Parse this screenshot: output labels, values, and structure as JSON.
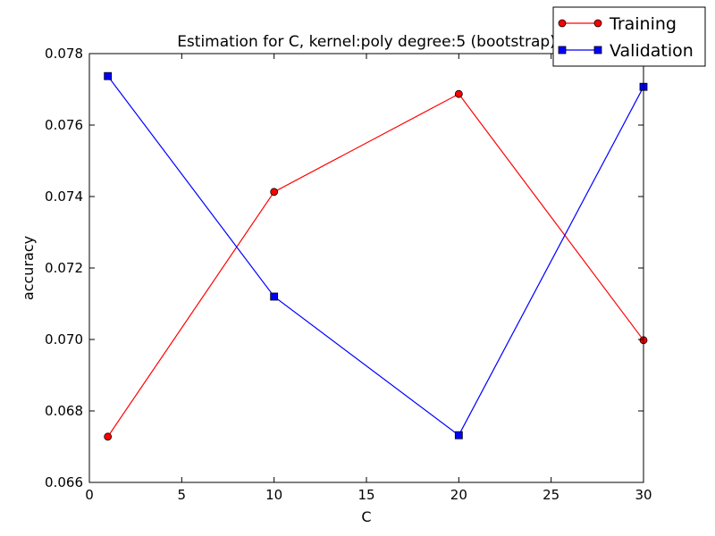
{
  "chart_data": {
    "type": "line",
    "title": "Estimation for C, kernel:poly degree:5 (bootstrap)",
    "xlabel": "C",
    "ylabel": "accuracy",
    "xlim": [
      0,
      30
    ],
    "ylim": [
      0.066,
      0.078
    ],
    "xticks": [
      "0",
      "5",
      "10",
      "15",
      "20",
      "25",
      "30"
    ],
    "yticks": [
      "0.066",
      "0.068",
      "0.070",
      "0.072",
      "0.074",
      "0.076",
      "0.078"
    ],
    "x": [
      1,
      10,
      20,
      30
    ],
    "grid": false,
    "legend_position": "top-right",
    "series": [
      {
        "name": "Training",
        "color": "#ff0000",
        "marker": "circle",
        "values": [
          0.06728,
          0.07413,
          0.07687,
          0.06998
        ]
      },
      {
        "name": "Validation",
        "color": "#0000ff",
        "marker": "square",
        "values": [
          0.07737,
          0.0712,
          0.06732,
          0.07707
        ]
      }
    ]
  }
}
